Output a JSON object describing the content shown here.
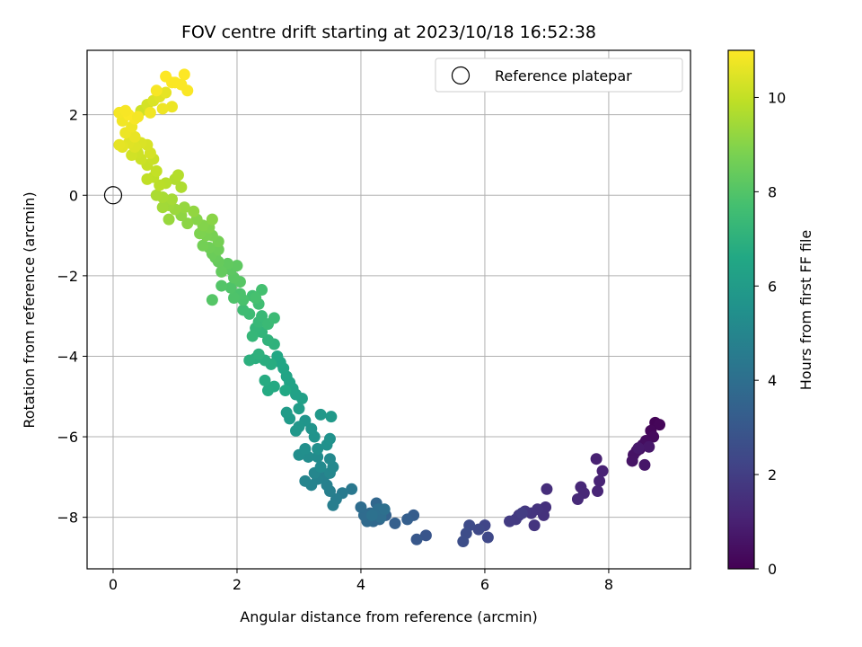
{
  "chart_data": {
    "type": "scatter",
    "title": "FOV centre drift starting at 2023/10/18 16:52:38",
    "xlabel": "Angular distance from reference (arcmin)",
    "ylabel": "Rotation from reference (arcmin)",
    "xlim": [
      -0.42,
      9.32
    ],
    "ylim": [
      -9.28,
      3.6
    ],
    "xticks": [
      0,
      2,
      4,
      6,
      8
    ],
    "yticks": [
      -8,
      -6,
      -4,
      -2,
      0,
      2
    ],
    "xtick_labels": [
      "0",
      "2",
      "4",
      "6",
      "8"
    ],
    "ytick_labels": [
      "−8",
      "−6",
      "−4",
      "−2",
      "0",
      "2"
    ],
    "grid": true,
    "reference_point": {
      "x": 0,
      "y": 0,
      "legend_label": "Reference platepar"
    },
    "legend_position": "top-right",
    "colorbar": {
      "label": "Hours from first FF file",
      "min": 0,
      "max": 11,
      "ticks": [
        0,
        2,
        4,
        6,
        8,
        10
      ],
      "tick_labels": [
        "0",
        "2",
        "4",
        "6",
        "8",
        "10"
      ],
      "colormap": "viridis"
    },
    "points": [
      [
        8.75,
        -5.65,
        0.1
      ],
      [
        8.82,
        -5.7,
        0.15
      ],
      [
        8.68,
        -5.85,
        0.2
      ],
      [
        8.72,
        -6.0,
        0.3
      ],
      [
        8.6,
        -6.1,
        0.35
      ],
      [
        8.55,
        -6.2,
        0.4
      ],
      [
        8.5,
        -6.3,
        0.45
      ],
      [
        8.45,
        -6.35,
        0.5
      ],
      [
        8.4,
        -6.45,
        0.55
      ],
      [
        8.38,
        -6.6,
        0.6
      ],
      [
        8.58,
        -6.7,
        0.65
      ],
      [
        8.65,
        -6.25,
        0.7
      ],
      [
        8.48,
        -6.28,
        0.75
      ],
      [
        7.8,
        -6.55,
        1.0
      ],
      [
        7.9,
        -6.85,
        1.05
      ],
      [
        7.85,
        -7.1,
        1.1
      ],
      [
        7.82,
        -7.35,
        1.15
      ],
      [
        7.55,
        -7.25,
        1.2
      ],
      [
        7.6,
        -7.4,
        1.25
      ],
      [
        7.5,
        -7.55,
        1.3
      ],
      [
        7.0,
        -7.3,
        1.45
      ],
      [
        6.98,
        -7.75,
        1.5
      ],
      [
        6.95,
        -7.95,
        1.55
      ],
      [
        6.85,
        -7.8,
        1.6
      ],
      [
        6.75,
        -7.9,
        1.65
      ],
      [
        6.8,
        -8.2,
        1.7
      ],
      [
        6.65,
        -7.85,
        1.75
      ],
      [
        6.55,
        -7.95,
        1.8
      ],
      [
        6.5,
        -8.05,
        1.85
      ],
      [
        6.4,
        -8.1,
        1.9
      ],
      [
        6.6,
        -7.9,
        1.95
      ],
      [
        6.0,
        -8.2,
        2.3
      ],
      [
        6.05,
        -8.5,
        2.35
      ],
      [
        5.9,
        -8.3,
        2.4
      ],
      [
        5.75,
        -8.2,
        2.5
      ],
      [
        5.7,
        -8.4,
        2.55
      ],
      [
        5.65,
        -8.6,
        2.6
      ],
      [
        5.05,
        -8.45,
        2.9
      ],
      [
        4.9,
        -8.55,
        3.0
      ],
      [
        4.85,
        -7.95,
        3.2
      ],
      [
        4.75,
        -8.05,
        3.3
      ],
      [
        4.55,
        -8.15,
        3.35
      ],
      [
        4.4,
        -7.95,
        3.45
      ],
      [
        4.35,
        -7.85,
        3.55
      ],
      [
        4.3,
        -8.05,
        3.6
      ],
      [
        4.25,
        -7.65,
        3.65
      ],
      [
        4.2,
        -8.1,
        3.7
      ],
      [
        4.15,
        -7.9,
        3.75
      ],
      [
        4.1,
        -8.1,
        3.8
      ],
      [
        4.05,
        -7.95,
        3.85
      ],
      [
        4.0,
        -7.75,
        3.9
      ],
      [
        4.32,
        -8.0,
        3.95
      ],
      [
        4.28,
        -7.8,
        4.0
      ],
      [
        4.38,
        -7.8,
        4.05
      ],
      [
        4.18,
        -7.95,
        4.1
      ],
      [
        3.85,
        -7.3,
        4.4
      ],
      [
        3.7,
        -7.4,
        4.5
      ],
      [
        3.6,
        -7.55,
        4.6
      ],
      [
        3.55,
        -7.7,
        4.65
      ],
      [
        3.5,
        -7.35,
        4.7
      ],
      [
        3.45,
        -7.2,
        4.75
      ],
      [
        3.4,
        -7.0,
        4.8
      ],
      [
        3.3,
        -7.05,
        4.85
      ],
      [
        3.2,
        -7.2,
        4.9
      ],
      [
        3.1,
        -7.1,
        4.95
      ],
      [
        3.25,
        -6.9,
        5.0
      ],
      [
        3.5,
        -6.9,
        5.05
      ],
      [
        3.55,
        -6.75,
        5.1
      ],
      [
        3.5,
        -6.55,
        5.15
      ],
      [
        3.35,
        -6.75,
        5.2
      ],
      [
        3.3,
        -6.5,
        5.25
      ],
      [
        3.15,
        -6.5,
        5.3
      ],
      [
        3.0,
        -6.45,
        5.35
      ],
      [
        3.1,
        -6.3,
        5.4
      ],
      [
        3.3,
        -6.3,
        5.45
      ],
      [
        3.45,
        -6.2,
        5.5
      ],
      [
        3.5,
        -6.05,
        5.55
      ],
      [
        3.25,
        -6.0,
        5.6
      ],
      [
        3.2,
        -5.8,
        5.65
      ],
      [
        3.1,
        -5.6,
        5.7
      ],
      [
        3.0,
        -5.75,
        5.75
      ],
      [
        2.95,
        -5.85,
        5.8
      ],
      [
        3.35,
        -5.45,
        5.85
      ],
      [
        3.52,
        -5.5,
        5.9
      ],
      [
        2.85,
        -5.55,
        5.95
      ],
      [
        2.8,
        -5.4,
        6.0
      ],
      [
        3.0,
        -5.3,
        6.05
      ],
      [
        3.05,
        -5.05,
        6.2
      ],
      [
        2.95,
        -4.95,
        6.25
      ],
      [
        2.9,
        -4.8,
        6.3
      ],
      [
        2.85,
        -4.65,
        6.35
      ],
      [
        2.8,
        -4.5,
        6.4
      ],
      [
        2.75,
        -4.3,
        6.45
      ],
      [
        2.7,
        -4.15,
        6.5
      ],
      [
        2.65,
        -4.0,
        6.55
      ],
      [
        2.78,
        -4.85,
        6.6
      ],
      [
        2.6,
        -4.75,
        6.65
      ],
      [
        2.5,
        -4.85,
        6.7
      ],
      [
        2.45,
        -4.6,
        6.75
      ],
      [
        2.55,
        -4.2,
        6.8
      ],
      [
        2.45,
        -4.1,
        6.85
      ],
      [
        2.3,
        -4.05,
        6.9
      ],
      [
        2.2,
        -4.1,
        6.95
      ],
      [
        2.35,
        -3.95,
        7.0
      ],
      [
        2.6,
        -3.7,
        7.05
      ],
      [
        2.5,
        -3.6,
        7.1
      ],
      [
        2.4,
        -3.4,
        7.15
      ],
      [
        2.3,
        -3.3,
        7.2
      ],
      [
        2.25,
        -3.5,
        7.25
      ],
      [
        2.35,
        -3.15,
        7.3
      ],
      [
        2.4,
        -3.0,
        7.35
      ],
      [
        2.5,
        -3.2,
        7.4
      ],
      [
        2.6,
        -3.05,
        7.45
      ],
      [
        2.2,
        -2.95,
        7.5
      ],
      [
        2.1,
        -2.85,
        7.55
      ],
      [
        2.35,
        -2.7,
        7.6
      ],
      [
        2.25,
        -2.5,
        7.65
      ],
      [
        2.4,
        -2.35,
        7.7
      ],
      [
        2.3,
        -2.55,
        7.75
      ],
      [
        2.1,
        -2.6,
        7.8
      ],
      [
        2.05,
        -2.45,
        7.85
      ],
      [
        1.95,
        -2.55,
        7.9
      ],
      [
        1.9,
        -2.3,
        7.95
      ],
      [
        1.75,
        -2.25,
        8.0
      ],
      [
        1.6,
        -2.6,
        8.05
      ],
      [
        2.05,
        -2.15,
        8.1
      ],
      [
        1.95,
        -2.05,
        8.15
      ],
      [
        1.9,
        -1.85,
        8.2
      ],
      [
        2.0,
        -1.75,
        8.25
      ],
      [
        1.85,
        -1.7,
        8.3
      ],
      [
        1.75,
        -1.9,
        8.35
      ],
      [
        1.7,
        -1.65,
        8.4
      ],
      [
        1.65,
        -1.55,
        8.45
      ],
      [
        1.6,
        -1.45,
        8.5
      ],
      [
        1.7,
        -1.35,
        8.55
      ],
      [
        1.55,
        -1.3,
        8.6
      ],
      [
        1.45,
        -1.25,
        8.65
      ],
      [
        1.7,
        -1.15,
        8.7
      ],
      [
        1.6,
        -1.0,
        8.75
      ],
      [
        1.5,
        -1.0,
        8.8
      ],
      [
        1.4,
        -0.95,
        8.85
      ],
      [
        1.55,
        -0.8,
        8.9
      ],
      [
        1.45,
        -0.75,
        8.95
      ],
      [
        1.35,
        -0.6,
        9.0
      ],
      [
        1.6,
        -0.6,
        9.05
      ],
      [
        1.2,
        -0.7,
        9.1
      ],
      [
        1.1,
        -0.5,
        9.15
      ],
      [
        1.3,
        -0.4,
        9.2
      ],
      [
        1.15,
        -0.3,
        9.25
      ],
      [
        0.9,
        -0.6,
        9.3
      ],
      [
        1.0,
        -0.35,
        9.35
      ],
      [
        0.9,
        -0.25,
        9.4
      ],
      [
        0.8,
        -0.3,
        9.45
      ],
      [
        0.95,
        -0.1,
        9.5
      ],
      [
        0.8,
        -0.05,
        9.55
      ],
      [
        0.7,
        0.0,
        9.6
      ],
      [
        1.1,
        0.2,
        9.65
      ],
      [
        1.0,
        0.4,
        9.7
      ],
      [
        1.05,
        0.5,
        9.75
      ],
      [
        0.85,
        0.3,
        9.8
      ],
      [
        0.75,
        0.25,
        9.85
      ],
      [
        0.65,
        0.45,
        9.9
      ],
      [
        0.55,
        0.4,
        9.95
      ],
      [
        0.7,
        0.6,
        10.0
      ],
      [
        0.55,
        0.75,
        10.05
      ],
      [
        0.65,
        0.9,
        10.1
      ],
      [
        0.45,
        0.9,
        10.15
      ],
      [
        0.4,
        1.05,
        10.2
      ],
      [
        0.3,
        1.0,
        10.25
      ],
      [
        0.6,
        1.05,
        10.3
      ],
      [
        0.55,
        1.25,
        10.35
      ],
      [
        0.45,
        1.3,
        10.4
      ],
      [
        0.35,
        1.2,
        10.45
      ],
      [
        0.25,
        1.3,
        10.5
      ],
      [
        0.15,
        1.2,
        10.55
      ],
      [
        0.1,
        1.25,
        10.6
      ],
      [
        0.35,
        1.45,
        10.65
      ],
      [
        0.2,
        1.55,
        10.7
      ],
      [
        0.3,
        1.7,
        10.75
      ],
      [
        0.15,
        1.85,
        10.8
      ],
      [
        0.1,
        2.05,
        10.85
      ],
      [
        0.35,
        1.9,
        10.9
      ],
      [
        0.25,
        2.0,
        10.95
      ],
      [
        0.45,
        2.1,
        10.2
      ],
      [
        0.55,
        2.25,
        10.3
      ],
      [
        0.65,
        2.35,
        10.4
      ],
      [
        0.75,
        2.45,
        10.5
      ],
      [
        0.85,
        2.55,
        10.6
      ],
      [
        0.95,
        2.2,
        10.7
      ],
      [
        0.8,
        2.15,
        10.75
      ],
      [
        0.6,
        2.05,
        10.8
      ],
      [
        0.4,
        1.95,
        10.85
      ],
      [
        0.7,
        2.6,
        10.9
      ],
      [
        0.85,
        2.95,
        11.0
      ],
      [
        0.95,
        2.8,
        11.0
      ],
      [
        1.15,
        3.0,
        11.0
      ],
      [
        1.2,
        2.6,
        10.95
      ],
      [
        1.1,
        2.75,
        10.95
      ],
      [
        1.0,
        2.8,
        10.95
      ],
      [
        0.2,
        2.1,
        10.9
      ]
    ]
  }
}
